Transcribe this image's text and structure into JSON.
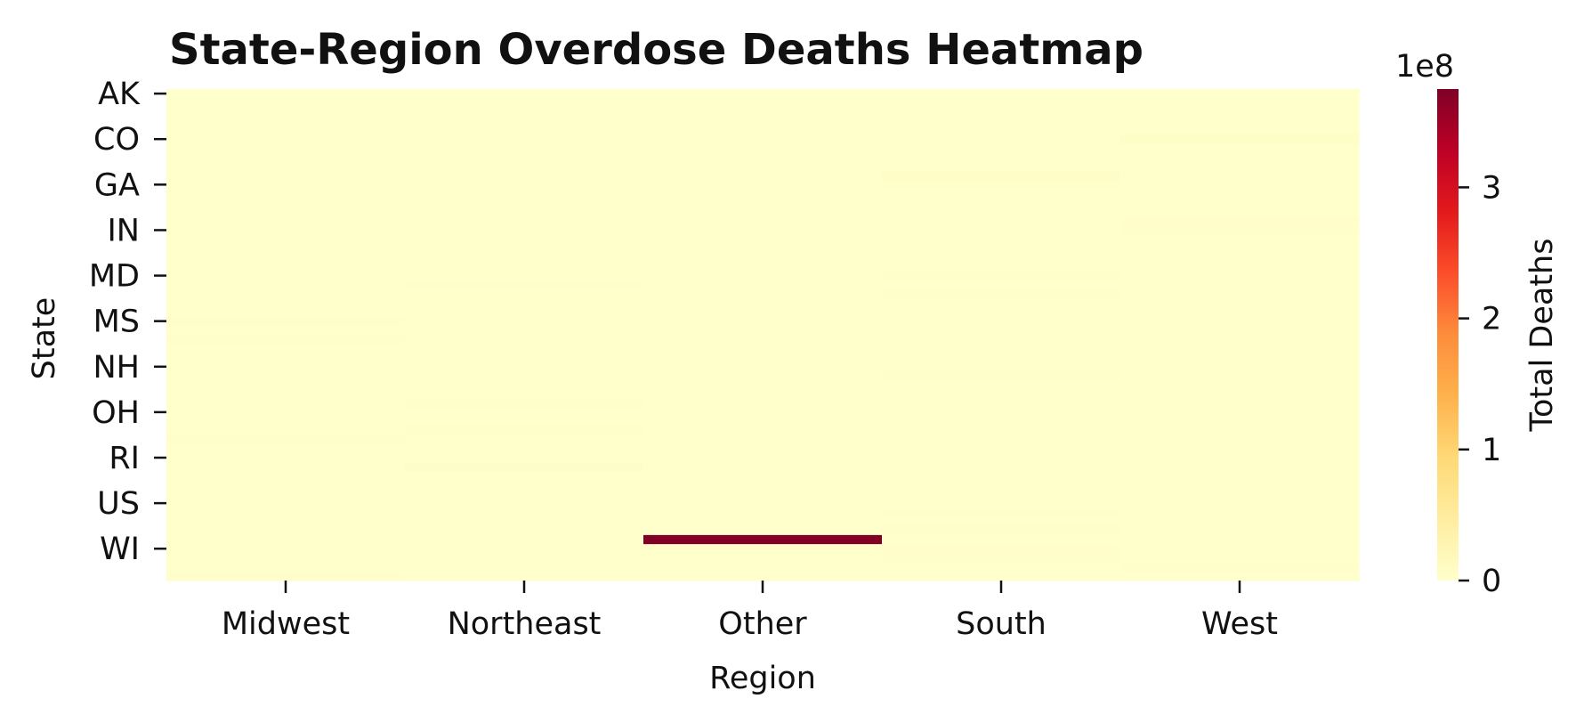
{
  "chart_data": {
    "type": "heatmap",
    "title": "State-Region Overdose Deaths Heatmap",
    "xlabel": "Region",
    "ylabel": "State",
    "colorbar_label": "Total Deaths",
    "colorbar_offset_label": "1e8",
    "colorbar_ticks": [
      0,
      1,
      2,
      3
    ],
    "colorbar_tick_labels": [
      "0",
      "1",
      "2",
      "3"
    ],
    "colorbar_range_e8": [
      0,
      3.75
    ],
    "colormap": [
      "#ffffcc",
      "#ffeda0",
      "#fed976",
      "#feb24c",
      "#fd8d3c",
      "#fc4e2a",
      "#e31a1c",
      "#bd0026",
      "#800026"
    ],
    "x_categories": [
      "Midwest",
      "Northeast",
      "Other",
      "South",
      "West"
    ],
    "y_tick_labels": [
      "AK",
      "CO",
      "GA",
      "IN",
      "MD",
      "MS",
      "NH",
      "OH",
      "RI",
      "US",
      "WI"
    ],
    "y_rows": 54,
    "values_e8": [
      {
        "row": 5,
        "col": 4,
        "value": 0.06
      },
      {
        "row": 9,
        "col": 3,
        "value": 0.05
      },
      {
        "row": 10,
        "col": 3,
        "value": 0.02
      },
      {
        "row": 14,
        "col": 4,
        "value": 0.015
      },
      {
        "row": 15,
        "col": 4,
        "value": 0.015
      },
      {
        "row": 20,
        "col": 3,
        "value": 0.015
      },
      {
        "row": 21,
        "col": 1,
        "value": 0.02
      },
      {
        "row": 22,
        "col": 3,
        "value": 0.015
      },
      {
        "row": 25,
        "col": 0,
        "value": 0.035
      },
      {
        "row": 27,
        "col": 0,
        "value": 0.015
      },
      {
        "row": 28,
        "col": 0,
        "value": 0.01
      },
      {
        "row": 31,
        "col": 3,
        "value": 0.03
      },
      {
        "row": 34,
        "col": 1,
        "value": 0.015
      },
      {
        "row": 37,
        "col": 1,
        "value": 0.025
      },
      {
        "row": 38,
        "col": 0,
        "value": 0.035
      },
      {
        "row": 39,
        "col": 4,
        "value": 0.01
      },
      {
        "row": 41,
        "col": 1,
        "value": 0.05
      },
      {
        "row": 46,
        "col": 3,
        "value": 0.015
      },
      {
        "row": 48,
        "col": 3,
        "value": 0.045
      },
      {
        "row": 49,
        "col": 2,
        "value": 3.75
      },
      {
        "row": 50,
        "col": 3,
        "value": 0.015
      },
      {
        "row": 51,
        "col": 3,
        "value": 0.015
      },
      {
        "row": 52,
        "col": 4,
        "value": 0.015
      },
      {
        "row": 53,
        "col": 0,
        "value": 0.015
      }
    ]
  }
}
